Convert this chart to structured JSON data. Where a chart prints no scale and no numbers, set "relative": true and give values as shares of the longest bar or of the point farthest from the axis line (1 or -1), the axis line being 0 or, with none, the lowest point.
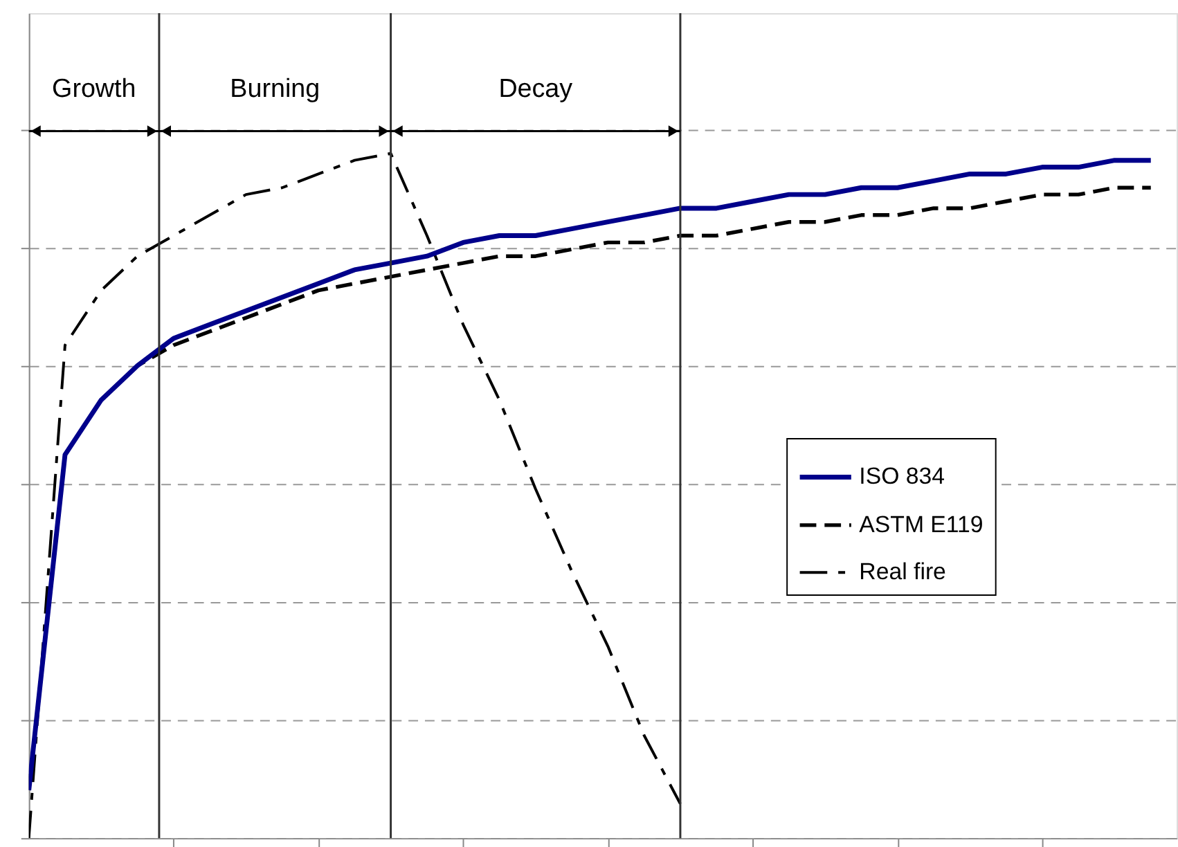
{
  "chart_data": {
    "type": "line",
    "relative": true,
    "categories": [
      null,
      null,
      null,
      null,
      null,
      null,
      null,
      null,
      null,
      null,
      null,
      null,
      null,
      null,
      null,
      null,
      null,
      null,
      null,
      null,
      null,
      null,
      null,
      null,
      null,
      null,
      null,
      null,
      null,
      null,
      null,
      null
    ],
    "grid": "y",
    "legend": "right",
    "annotations": [
      "Growth",
      "Burning",
      "Decay"
    ],
    "series": [
      {
        "name": "ISO 834",
        "color": "#00008b",
        "line_style": "solid",
        "values": [
          0.07,
          0.56,
          0.64,
          0.69,
          0.73,
          0.75,
          0.77,
          0.79,
          0.81,
          0.83,
          0.84,
          0.85,
          0.87,
          0.88,
          0.88,
          0.89,
          0.9,
          0.91,
          0.92,
          0.92,
          0.93,
          0.94,
          0.94,
          0.95,
          0.95,
          0.96,
          0.97,
          0.97,
          0.98,
          0.98,
          0.99,
          0.99
        ]
      },
      {
        "name": "ASTM E119",
        "color": "#000000",
        "line_style": "dashed",
        "values": [
          0.07,
          0.56,
          0.64,
          0.69,
          0.72,
          0.74,
          0.76,
          0.78,
          0.8,
          0.81,
          0.82,
          0.83,
          0.84,
          0.85,
          0.85,
          0.86,
          0.87,
          0.87,
          0.88,
          0.88,
          0.89,
          0.9,
          0.9,
          0.91,
          0.91,
          0.92,
          0.92,
          0.93,
          0.94,
          0.94,
          0.95,
          0.95
        ]
      },
      {
        "name": "Real fire",
        "color": "#000000",
        "line_style": "dashdot",
        "values": [
          0,
          0.72,
          0.8,
          0.85,
          0.88,
          0.91,
          0.94,
          0.95,
          0.97,
          0.99,
          1.0,
          0.88,
          0.75,
          0.64,
          0.51,
          0.39,
          0.28,
          0.15,
          0.05,
          null,
          null,
          null,
          null,
          null,
          null,
          null,
          null,
          null,
          null,
          null,
          null,
          null
        ]
      }
    ]
  }
}
